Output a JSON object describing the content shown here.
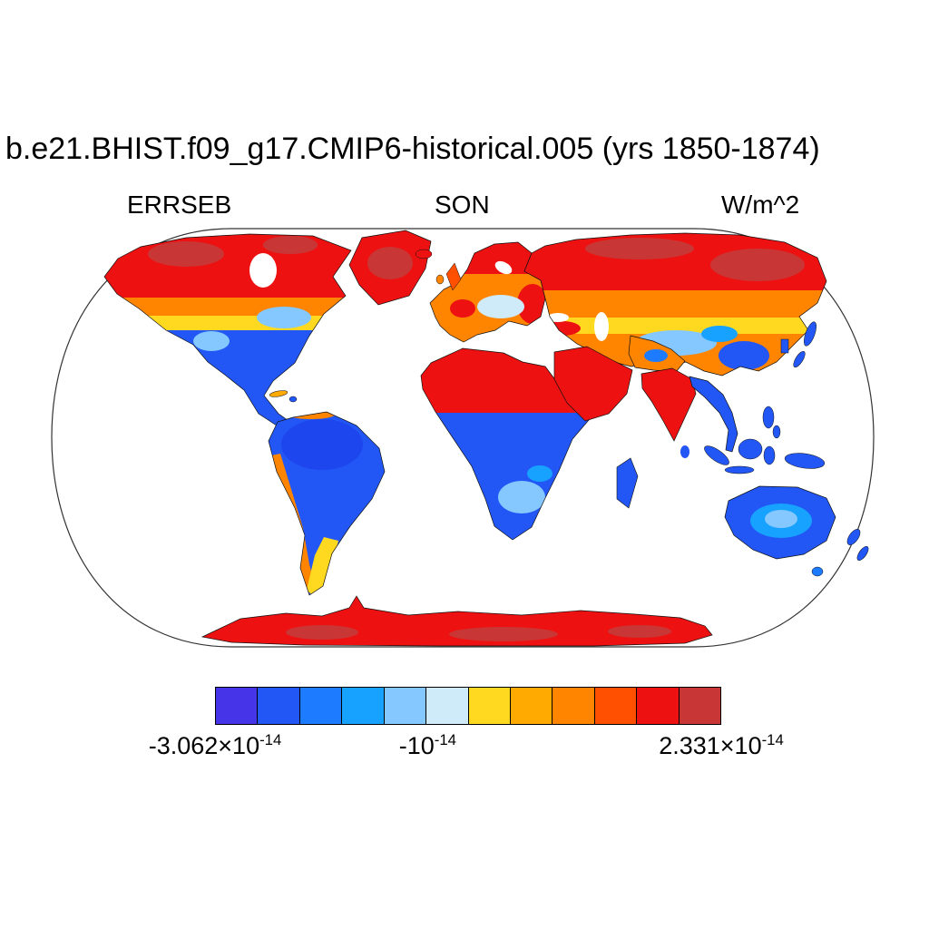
{
  "title": "b.e21.BHIST.f09_g17.CMIP6-historical.005 (yrs 1850-1874)",
  "header": {
    "field": "ERRSEB",
    "season": "SON",
    "units": "W/m^2"
  },
  "colorbar": {
    "colors": [
      "#4634e8",
      "#2256f5",
      "#1d7bff",
      "#18a2ff",
      "#84c8ff",
      "#cfeaf8",
      "#ffd91f",
      "#ffaa00",
      "#ff8400",
      "#ff4f00",
      "#ee1111",
      "#c93636"
    ],
    "ticks": [
      {
        "base": "-3.062×10",
        "exp": "-14"
      },
      {
        "base": "-10",
        "exp": "-14"
      },
      {
        "base": "2.331×10",
        "exp": "-14"
      }
    ]
  },
  "chart_data": {
    "type": "heatmap",
    "title": "b.e21.BHIST.f09_g17.CMIP6-historical.005 (yrs 1850-1874)",
    "variable": "ERRSEB",
    "season": "SON",
    "units": "W/m^2",
    "projection": "Robinson world map, land-only shading, white ocean",
    "n_color_levels": 12,
    "palette": [
      "#4634e8",
      "#2256f5",
      "#1d7bff",
      "#18a2ff",
      "#84c8ff",
      "#cfeaf8",
      "#ffd91f",
      "#ffaa00",
      "#ff8400",
      "#ff4f00",
      "#ee1111",
      "#c93636"
    ],
    "colorbar_ticks": [
      -3.062e-14,
      -1e-14,
      2.331e-14
    ],
    "colorbar_tick_labels": [
      "-3.062×10^-14",
      "-10^-14",
      "2.331×10^-14"
    ],
    "region_pattern": [
      {
        "region": "Canada, Alaska, Greenland, Scandinavia, Siberia",
        "value": "strong positive (red, near +2×10^-14)"
      },
      {
        "region": "Sahara, Arabian Peninsula, India, Antarctica",
        "value": "strong positive (red)"
      },
      {
        "region": "Northern US, central Asia, eastern Europe belts",
        "value": "mid-scale (orange/yellow with light-blue patches)"
      },
      {
        "region": "Western North America, Mexico, tropical South America, sub-Saharan Africa, Southeast Asia, Indonesia, Australia",
        "value": "strong negative (blue, near -3×10^-14)"
      },
      {
        "region": "Andes west coast and Patagonia",
        "value": "transitional (orange/yellow)"
      }
    ]
  }
}
